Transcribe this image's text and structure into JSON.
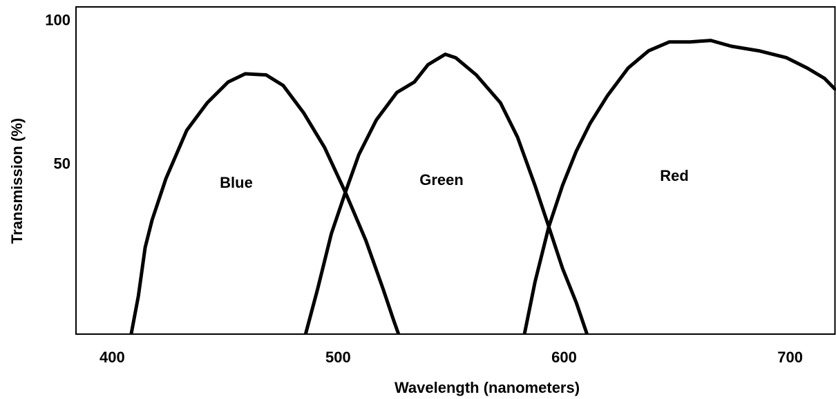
{
  "chart_data": {
    "type": "line",
    "xlabel": "Wavelength (nanometers)",
    "ylabel": "Transmission (%)",
    "xlim": [
      384,
      720
    ],
    "xticks": [
      400,
      500,
      600,
      700
    ],
    "ylim": [
      -9,
      105
    ],
    "yticks": [
      50,
      100
    ],
    "grid": false,
    "series": [
      {
        "name": "Blue",
        "color": "#000000",
        "x": [
          408.5,
          411.6,
          414.6,
          417.7,
          423.8,
          433.0,
          442.1,
          451.3,
          458.9,
          468.1,
          475.7,
          484.8,
          494.0,
          503.2,
          512.3,
          519.9,
          524.5,
          526.6
        ],
        "values": [
          -8.7,
          4.3,
          21.2,
          30.8,
          45.2,
          62.0,
          71.6,
          78.8,
          81.7,
          81.3,
          77.6,
          68.0,
          56.0,
          40.4,
          23.6,
          6.7,
          -4.1,
          -8.7
        ]
      },
      {
        "name": "Green",
        "color": "#000000",
        "x": [
          485.7,
          490.9,
          497.0,
          503.2,
          509.2,
          516.9,
          526.0,
          533.7,
          539.8,
          547.4,
          552.0,
          561.1,
          571.8,
          579.4,
          587.1,
          593.2,
          599.3,
          605.4,
          610.0
        ],
        "values": [
          -8.7,
          6.7,
          26.0,
          40.4,
          53.6,
          65.6,
          75.2,
          78.8,
          84.9,
          88.5,
          87.3,
          81.3,
          71.6,
          59.6,
          42.8,
          28.4,
          13.9,
          1.9,
          -8.7
        ]
      },
      {
        "name": "Red",
        "color": "#000000",
        "x": [
          582.5,
          587.1,
          593.2,
          599.3,
          605.4,
          611.5,
          619.1,
          628.3,
          637.4,
          646.6,
          655.7,
          664.9,
          674.0,
          686.2,
          698.4,
          707.6,
          715.2,
          719.8
        ],
        "values": [
          -8.7,
          9.1,
          28.4,
          42.8,
          54.8,
          64.4,
          74.0,
          83.7,
          89.7,
          92.8,
          92.8,
          93.3,
          91.3,
          89.7,
          87.3,
          83.7,
          80.1,
          76.4
        ]
      }
    ]
  }
}
